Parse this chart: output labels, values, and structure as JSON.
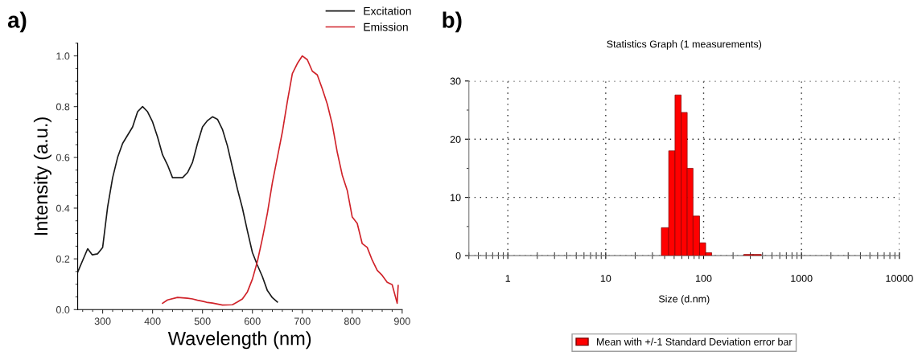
{
  "chart_data": [
    {
      "type": "line",
      "xlabel": "Wavelength (nm)",
      "ylabel": "Intensity (a.u.)",
      "annotations": [
        "a)"
      ],
      "xlim": [
        250,
        900
      ],
      "xticks": [
        300,
        400,
        500,
        600,
        700,
        800,
        900
      ],
      "ylim": [
        0,
        1.05
      ],
      "yticks": [
        {
          "value": 0,
          "label": "0.0"
        },
        0.2,
        0.4,
        0.6,
        0.8,
        {
          "value": 1,
          "label": "1.0"
        }
      ],
      "legend": "top right",
      "grid": false,
      "marker": "none",
      "line_style": "solid",
      "series": [
        {
          "name": "Excitation",
          "color": "#1a1a1a",
          "x": [
            250,
            270,
            279,
            290,
            300,
            310,
            320,
            330,
            340,
            360,
            370,
            380,
            390,
            400,
            410,
            420,
            430,
            440,
            460,
            470,
            480,
            490,
            500,
            510,
            520,
            530,
            540,
            550,
            560,
            570,
            580,
            590,
            600,
            610,
            620,
            630,
            640,
            650
          ],
          "values": [
            0.148,
            0.24,
            0.216,
            0.22,
            0.245,
            0.405,
            0.52,
            0.6,
            0.655,
            0.72,
            0.78,
            0.8,
            0.78,
            0.74,
            0.68,
            0.61,
            0.57,
            0.52,
            0.52,
            0.54,
            0.58,
            0.655,
            0.72,
            0.745,
            0.76,
            0.75,
            0.71,
            0.645,
            0.56,
            0.475,
            0.4,
            0.31,
            0.225,
            0.175,
            0.13,
            0.075,
            0.047,
            0.03
          ]
        },
        {
          "name": "Emission",
          "color": "#d0232a",
          "x": [
            420,
            430,
            450,
            470,
            480,
            490,
            500,
            510,
            520,
            530,
            540,
            560,
            570,
            580,
            590,
            600,
            610,
            620,
            630,
            640,
            650,
            660,
            670,
            680,
            690,
            700,
            710,
            720,
            730,
            740,
            750,
            760,
            770,
            780,
            790,
            800,
            810,
            820,
            830,
            840,
            850,
            860,
            870,
            880,
            890,
            892
          ],
          "values": [
            0.025,
            0.038,
            0.048,
            0.045,
            0.042,
            0.037,
            0.033,
            0.028,
            0.026,
            0.022,
            0.018,
            0.019,
            0.03,
            0.042,
            0.07,
            0.12,
            0.19,
            0.28,
            0.38,
            0.5,
            0.6,
            0.7,
            0.82,
            0.93,
            0.97,
            1.0,
            0.985,
            0.94,
            0.925,
            0.87,
            0.81,
            0.73,
            0.62,
            0.53,
            0.47,
            0.365,
            0.34,
            0.26,
            0.245,
            0.195,
            0.155,
            0.135,
            0.108,
            0.098,
            0.025,
            0.095
          ]
        }
      ]
    },
    {
      "type": "histogram",
      "title": "Statistics Graph (1 measurements)",
      "xlabel": "Size (d.nm)",
      "annotations": [
        "b)"
      ],
      "log": "x",
      "xlim": [
        0.4,
        10000
      ],
      "xticks": [
        1,
        10,
        100,
        1000,
        10000
      ],
      "ylim": [
        0,
        30
      ],
      "yticks": [
        0,
        10,
        20,
        30
      ],
      "grid": true,
      "legend": "bottom",
      "bins": [
        37,
        44,
        51,
        59,
        68,
        78,
        91,
        105,
        121,
        257,
        320,
        389
      ],
      "series": [
        {
          "name": "Mean with +/-1 Standard Deviation error bar",
          "color": "#ff0000",
          "values": [
            4.8,
            18,
            27.6,
            24.6,
            15,
            6.8,
            2.2,
            0.5,
            0,
            0.2,
            0.2
          ]
        }
      ]
    }
  ]
}
